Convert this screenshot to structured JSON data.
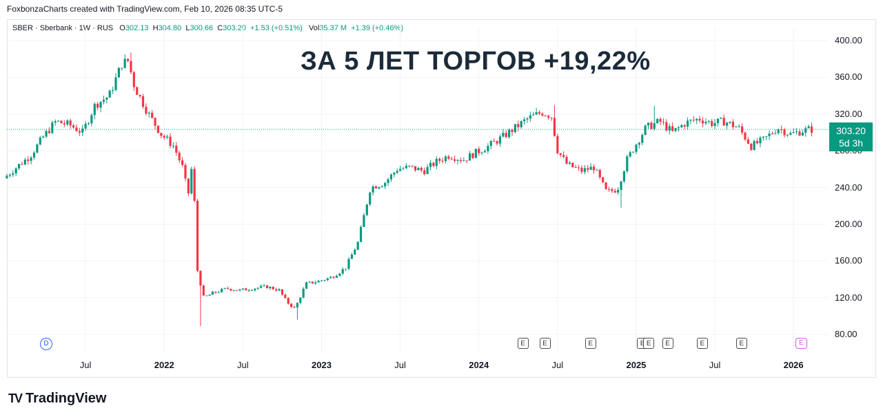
{
  "header": {
    "credit": "FoxbonzaCharts created with TradingView.com, Feb 10, 2026 08:35 UTC-5"
  },
  "legend": {
    "symbol": "SBER · Sberbank · 1W · RUS",
    "o_label": "O",
    "o_value": "302.13",
    "h_label": "H",
    "h_value": "304.80",
    "l_label": "L",
    "l_value": "300.66",
    "c_label": "C",
    "c_value": "303.20",
    "change": "+1.53 (+0.51%)",
    "vol_label": "Vol",
    "vol_value": "35.37 M",
    "vol_change": "+1.39 (+0.46%)"
  },
  "price_tag": {
    "price": "303.20",
    "countdown": "5d 3h"
  },
  "events": {
    "dividend": "D",
    "earnings": "E"
  },
  "brand": {
    "logo": "TV",
    "name": "TradingView"
  },
  "colors": {
    "up": "#089981",
    "down": "#f23645",
    "tag": "#089981",
    "grid": "#f0f3fa"
  },
  "chart_data": {
    "type": "candlestick",
    "title": "ЗА 5 ЛЕТ ТОРГОВ +19,22%",
    "y_ticks": [
      "400.00",
      "360.00",
      "320.00",
      "280.00",
      "240.00",
      "200.00",
      "160.00",
      "120.00",
      "80.00"
    ],
    "ylim": [
      80,
      400
    ],
    "x_ticks": [
      {
        "label": "Jul",
        "t": 2021.5,
        "year": false
      },
      {
        "label": "2022",
        "t": 2022.0,
        "year": true
      },
      {
        "label": "Jul",
        "t": 2022.5,
        "year": false
      },
      {
        "label": "2023",
        "t": 2023.0,
        "year": true
      },
      {
        "label": "Jul",
        "t": 2023.5,
        "year": false
      },
      {
        "label": "2024",
        "t": 2024.0,
        "year": true
      },
      {
        "label": "Jul",
        "t": 2024.5,
        "year": false
      },
      {
        "label": "2025",
        "t": 2025.0,
        "year": true
      },
      {
        "label": "Jul",
        "t": 2025.5,
        "year": false
      },
      {
        "label": "2026",
        "t": 2026.0,
        "year": true
      }
    ],
    "xlim": [
      2021.0,
      2026.17
    ],
    "last_price": 303.2,
    "price_path": [
      [
        2021.0,
        250
      ],
      [
        2021.08,
        262
      ],
      [
        2021.17,
        275
      ],
      [
        2021.25,
        295
      ],
      [
        2021.33,
        312
      ],
      [
        2021.42,
        308
      ],
      [
        2021.5,
        300
      ],
      [
        2021.58,
        330
      ],
      [
        2021.67,
        340
      ],
      [
        2021.75,
        375
      ],
      [
        2021.79,
        378
      ],
      [
        2021.83,
        350
      ],
      [
        2021.92,
        320
      ],
      [
        2022.0,
        298
      ],
      [
        2022.08,
        285
      ],
      [
        2022.14,
        260
      ],
      [
        2022.17,
        230
      ],
      [
        2022.2,
        270
      ],
      [
        2022.23,
        150
      ],
      [
        2022.27,
        120
      ],
      [
        2022.33,
        125
      ],
      [
        2022.42,
        130
      ],
      [
        2022.5,
        128
      ],
      [
        2022.58,
        130
      ],
      [
        2022.67,
        132
      ],
      [
        2022.75,
        128
      ],
      [
        2022.8,
        115
      ],
      [
        2022.85,
        108
      ],
      [
        2022.92,
        135
      ],
      [
        2023.0,
        138
      ],
      [
        2023.08,
        142
      ],
      [
        2023.17,
        152
      ],
      [
        2023.25,
        180
      ],
      [
        2023.33,
        240
      ],
      [
        2023.42,
        245
      ],
      [
        2023.5,
        260
      ],
      [
        2023.58,
        262
      ],
      [
        2023.67,
        258
      ],
      [
        2023.75,
        268
      ],
      [
        2023.83,
        275
      ],
      [
        2023.92,
        270
      ],
      [
        2024.0,
        278
      ],
      [
        2024.08,
        285
      ],
      [
        2024.17,
        295
      ],
      [
        2024.25,
        305
      ],
      [
        2024.33,
        315
      ],
      [
        2024.42,
        322
      ],
      [
        2024.48,
        318
      ],
      [
        2024.52,
        280
      ],
      [
        2024.58,
        265
      ],
      [
        2024.67,
        258
      ],
      [
        2024.75,
        262
      ],
      [
        2024.83,
        235
      ],
      [
        2024.9,
        238
      ],
      [
        2024.96,
        270
      ],
      [
        2025.0,
        282
      ],
      [
        2025.08,
        305
      ],
      [
        2025.17,
        312
      ],
      [
        2025.25,
        300
      ],
      [
        2025.33,
        310
      ],
      [
        2025.42,
        315
      ],
      [
        2025.5,
        310
      ],
      [
        2025.58,
        312
      ],
      [
        2025.67,
        305
      ],
      [
        2025.75,
        285
      ],
      [
        2025.83,
        292
      ],
      [
        2025.92,
        305
      ],
      [
        2026.0,
        298
      ],
      [
        2026.08,
        302
      ],
      [
        2026.12,
        303.2
      ]
    ],
    "wick_extremes": [
      {
        "t": 2021.79,
        "high": 387
      },
      {
        "t": 2022.24,
        "low": 89
      },
      {
        "t": 2022.84,
        "low": 96
      },
      {
        "t": 2024.48,
        "high": 330
      },
      {
        "t": 2024.9,
        "low": 218
      },
      {
        "t": 2025.12,
        "high": 329
      }
    ],
    "earnings_markers": [
      2024.28,
      2024.42,
      2024.71,
      2025.04,
      2025.08,
      2025.2,
      2025.42,
      2025.67
    ],
    "dividend_marker": 2021.25
  }
}
